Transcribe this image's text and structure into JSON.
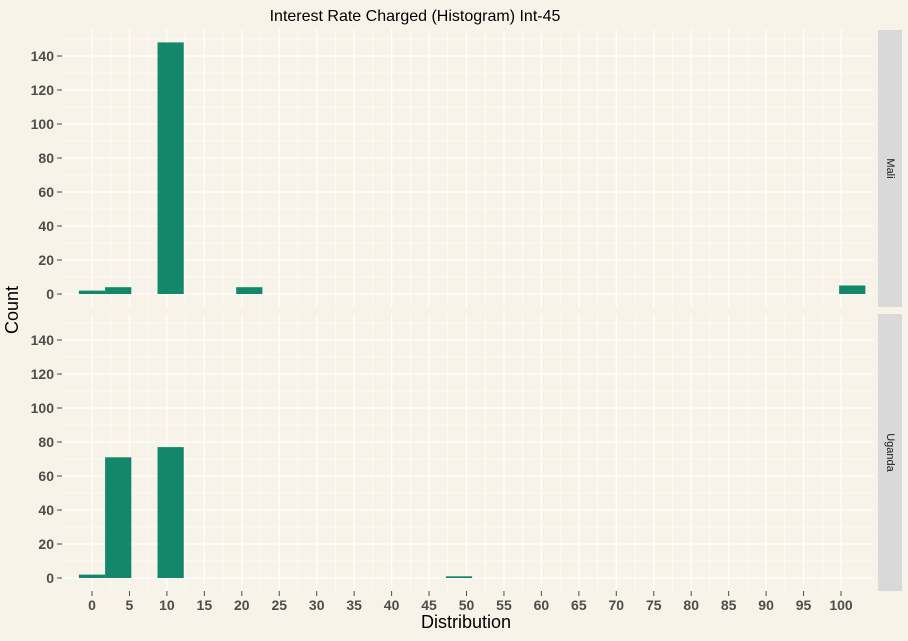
{
  "chart_data": {
    "type": "bar",
    "title": "Interest Rate Charged (Histogram) Int-45",
    "xlabel": "Distribution",
    "ylabel": "Count",
    "xlim": [
      -2.5,
      105
    ],
    "ylim": [
      0,
      148
    ],
    "x_ticks": [
      "0",
      "5",
      "10",
      "15",
      "20",
      "25",
      "30",
      "35",
      "40",
      "45",
      "50",
      "55",
      "60",
      "65",
      "70",
      "75",
      "80",
      "85",
      "90",
      "95",
      "100"
    ],
    "y_ticks": [
      "0",
      "20",
      "40",
      "60",
      "80",
      "100",
      "120",
      "140"
    ],
    "grid": true,
    "legend": "none",
    "bin_width": 3.5,
    "colors": {
      "bar": "#12876a",
      "panel": "#f8f3e8",
      "grid": "#ffffff",
      "strip": "#d9d9d9"
    },
    "panels": [
      {
        "label": "Mali",
        "bars": [
          {
            "x": 0,
            "value": 2
          },
          {
            "x": 3.5,
            "value": 4
          },
          {
            "x": 10.5,
            "value": 148
          },
          {
            "x": 21,
            "value": 4
          },
          {
            "x": 101.5,
            "value": 5
          }
        ]
      },
      {
        "label": "Uganda",
        "bars": [
          {
            "x": 0,
            "value": 2
          },
          {
            "x": 3.5,
            "value": 71
          },
          {
            "x": 10.5,
            "value": 77
          },
          {
            "x": 49,
            "value": 1
          }
        ]
      }
    ]
  }
}
